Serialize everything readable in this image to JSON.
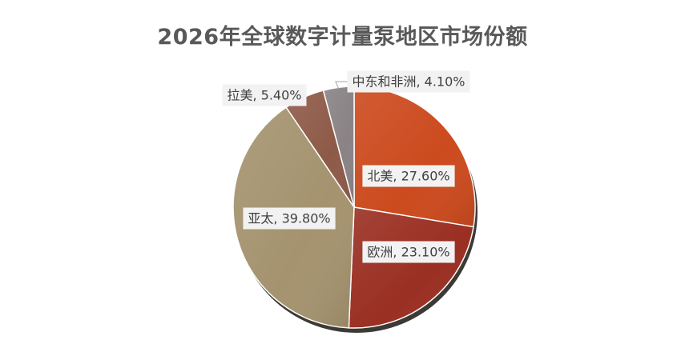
{
  "chart_data": {
    "type": "pie",
    "title": "2026年全球数字计量泵地区市场份额",
    "label_separator": ", ",
    "slices": [
      {
        "name": "北美",
        "value": 27.6,
        "label": "27.60%",
        "color": "#cc4a1e"
      },
      {
        "name": "欧洲",
        "value": 23.1,
        "label": "23.10%",
        "color": "#9a2f22"
      },
      {
        "name": "亚太",
        "value": 39.8,
        "label": "39.80%",
        "color": "#a5936f"
      },
      {
        "name": "拉美",
        "value": 5.4,
        "label": "5.40%",
        "color": "#8e5a48"
      },
      {
        "name": "中东和非洲",
        "value": 4.1,
        "label": "4.10%",
        "color": "#8a8385"
      }
    ],
    "legend": "none",
    "start_angle": "12 o'clock, clockwise"
  }
}
